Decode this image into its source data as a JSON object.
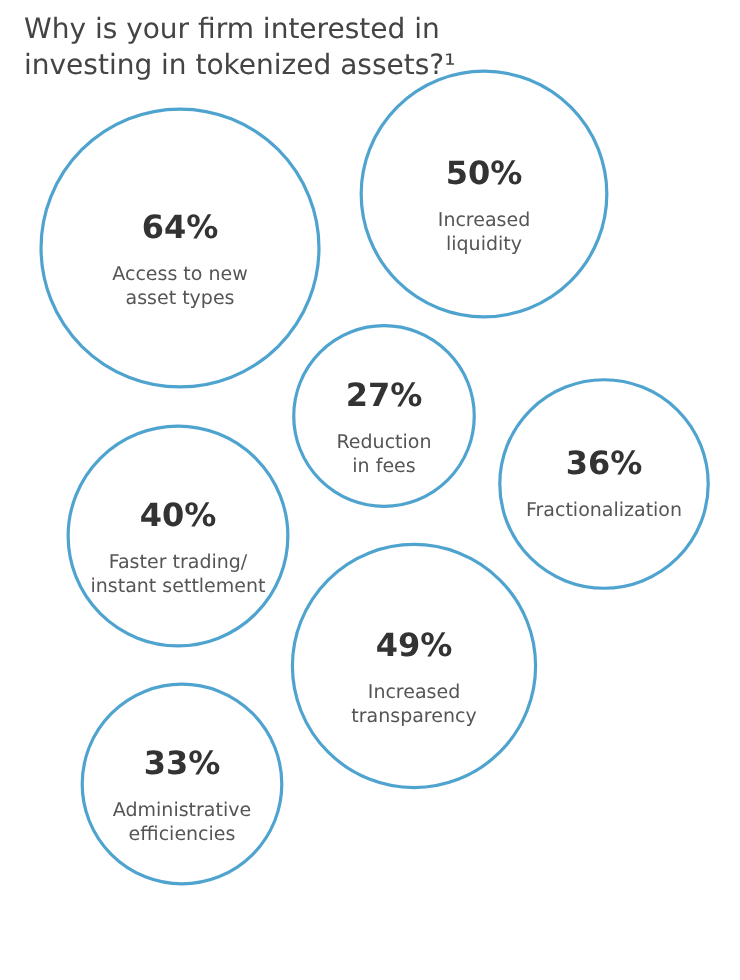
{
  "chart_data": {
    "type": "other",
    "title": "Why is your firm interested in\ninvesting in tokenized assets?¹",
    "categories": [
      "Access to new\nasset types",
      "Increased\nliquidity",
      "Reduction\nin fees",
      "Fractionalization",
      "Faster trading/\ninstant settlement",
      "Increased\ntransparency",
      "Administrative\nefficiencies"
    ],
    "values": [
      64,
      50,
      27,
      36,
      40,
      49,
      33
    ],
    "value_labels": [
      "64%",
      "50%",
      "27%",
      "36%",
      "40%",
      "49%",
      "33%"
    ],
    "color": "#4fa3cf"
  }
}
